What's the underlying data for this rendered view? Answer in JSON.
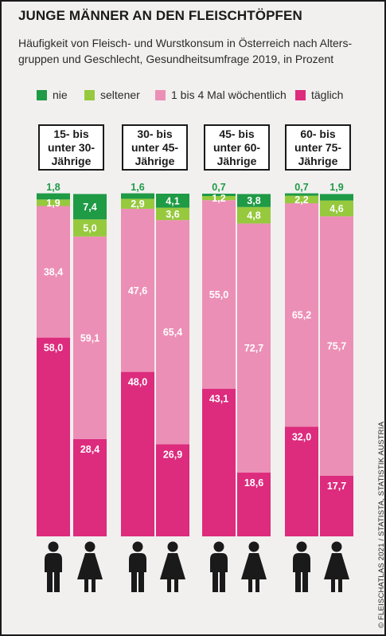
{
  "title": "JUNGE MÄNNER AN DEN FLEISCHTÖPFEN",
  "subtitle_lines": [
    "Häufigkeit von Fleisch- und Wurstkonsum in Österreich nach Alters-",
    "gruppen und Geschlecht, Gesundheitsumfrage 2019, in Prozent"
  ],
  "legend": [
    {
      "label": "nie",
      "color": "#1f9a45"
    },
    {
      "label": "seltener",
      "color": "#96c93d"
    },
    {
      "label": "1 bis 4 Mal wöchentlich",
      "color": "#ec8fb6"
    },
    {
      "label": "täglich",
      "color": "#dd2b7d"
    }
  ],
  "colors": {
    "text": "#1a1a1a",
    "value_green": "#1f9a45",
    "value_white": "#ffffff",
    "background": "#f1f0ef"
  },
  "groups": [
    {
      "label_lines": [
        "15- bis",
        "unter 30-",
        "Jährige"
      ]
    },
    {
      "label_lines": [
        "30- bis",
        "unter 45-",
        "Jährige"
      ]
    },
    {
      "label_lines": [
        "45- bis",
        "unter 60-",
        "Jährige"
      ]
    },
    {
      "label_lines": [
        "60- bis",
        "unter 75-",
        "Jährige"
      ]
    }
  ],
  "chart_data": {
    "type": "bar",
    "stacked": true,
    "stack_order_bottom_to_top": [
      "täglich",
      "1 bis 4 Mal wöchentlich",
      "seltener",
      "nie"
    ],
    "units": "Prozent",
    "ylim": [
      0,
      100
    ],
    "categories": [
      {
        "age_group": "15- bis unter 30-Jährige",
        "sex": "Männer",
        "icon": "male-person-icon"
      },
      {
        "age_group": "15- bis unter 30-Jährige",
        "sex": "Frauen",
        "icon": "female-person-icon"
      },
      {
        "age_group": "30- bis unter 45-Jährige",
        "sex": "Männer",
        "icon": "male-person-icon"
      },
      {
        "age_group": "30- bis unter 45-Jährige",
        "sex": "Frauen",
        "icon": "female-person-icon"
      },
      {
        "age_group": "45- bis unter 60-Jährige",
        "sex": "Männer",
        "icon": "male-person-icon"
      },
      {
        "age_group": "45- bis unter 60-Jährige",
        "sex": "Frauen",
        "icon": "female-person-icon"
      },
      {
        "age_group": "60- bis unter 75-Jährige",
        "sex": "Männer",
        "icon": "male-person-icon"
      },
      {
        "age_group": "60- bis unter 75-Jährige",
        "sex": "Frauen",
        "icon": "female-person-icon"
      }
    ],
    "series": [
      {
        "name": "nie",
        "values": [
          1.8,
          7.4,
          1.6,
          4.1,
          0.7,
          3.8,
          0.7,
          1.9
        ],
        "labels": [
          "1,8",
          "7,4",
          "1,6",
          "4,1",
          "0,7",
          "3,8",
          "0,7",
          "1,9"
        ]
      },
      {
        "name": "seltener",
        "values": [
          1.9,
          5.0,
          2.9,
          3.6,
          1.2,
          4.8,
          2.2,
          4.6
        ],
        "labels": [
          "1,9",
          "5,0",
          "2,9",
          "3,6",
          "1,2",
          "4,8",
          "2,2",
          "4,6"
        ]
      },
      {
        "name": "1 bis 4 Mal wöchentlich",
        "values": [
          38.4,
          59.1,
          47.6,
          65.4,
          55.0,
          72.7,
          65.2,
          75.7
        ],
        "labels": [
          "38,4",
          "59,1",
          "47,6",
          "65,4",
          "55,0",
          "72,7",
          "65,2",
          "75,7"
        ]
      },
      {
        "name": "täglich",
        "values": [
          58.0,
          28.4,
          48.0,
          26.9,
          43.1,
          18.6,
          32.0,
          17.7
        ],
        "labels": [
          "58,0",
          "28,4",
          "48,0",
          "26,9",
          "43,1",
          "18,6",
          "32,0",
          "17,7"
        ]
      }
    ]
  },
  "source": "© FLEISCHATLAS 2021 / STATISTA, STATISTIK AUSTRIA"
}
